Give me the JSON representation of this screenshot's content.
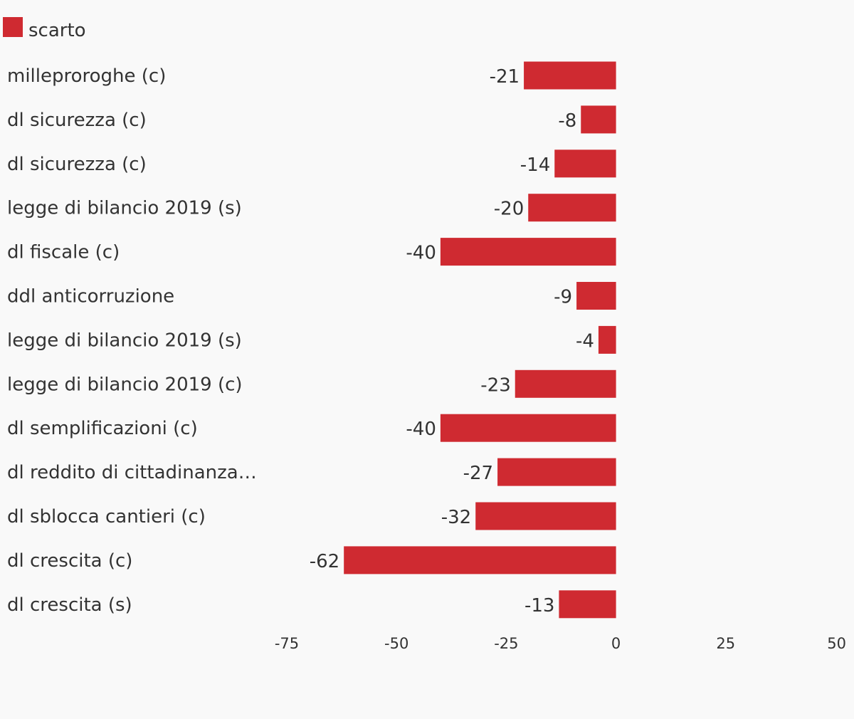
{
  "chart_data": {
    "type": "bar",
    "orientation": "horizontal",
    "categories": [
      "milleproroghe (c)",
      "dl sicurezza (c)",
      "dl sicurezza (c)",
      "legge di bilancio 2019 (s)",
      "dl fiscale (c)",
      "ddl anticorruzione",
      "legge di bilancio 2019 (s)",
      "legge di bilancio 2019 (c)",
      "dl semplificazioni (c)",
      "dl reddito di cittadinanza…",
      "dl sblocca cantieri (c)",
      "dl crescita (c)",
      "dl crescita (s)"
    ],
    "series": [
      {
        "name": "scarto",
        "color": "#cf2a31",
        "values": [
          -21,
          -8,
          -14,
          -20,
          -40,
          -9,
          -4,
          -23,
          -40,
          -27,
          -32,
          -62,
          -13
        ]
      }
    ],
    "xlim": [
      -75,
      50
    ],
    "x_ticks": [
      -75,
      -50,
      -25,
      0,
      25,
      50
    ],
    "title": "",
    "xlabel": "",
    "ylabel": "",
    "legend_position": "top-left",
    "grid": false
  }
}
